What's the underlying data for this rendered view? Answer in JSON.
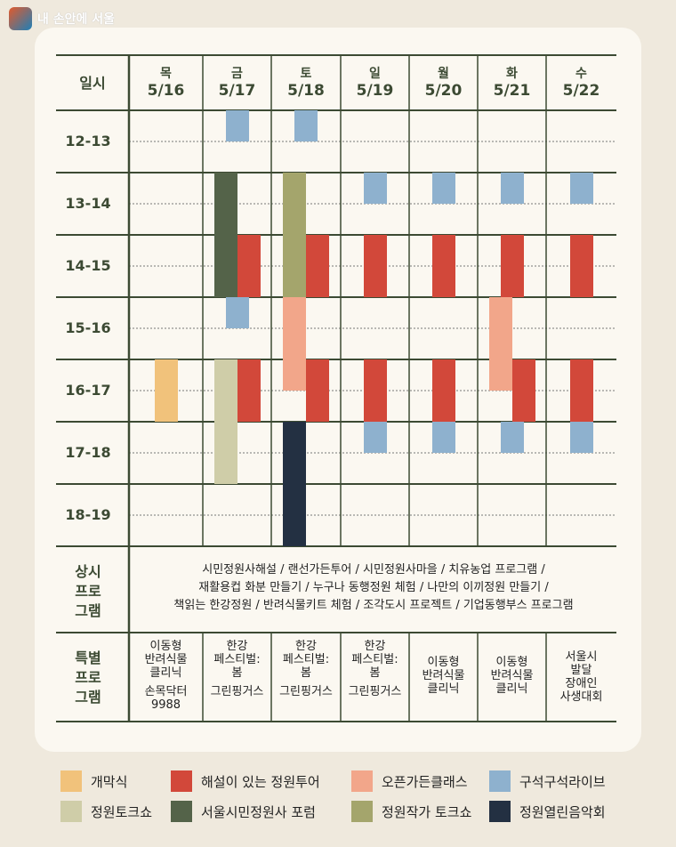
{
  "logo": {
    "text": "내 손안에 서울"
  },
  "header": {
    "corner": "일시",
    "days": [
      {
        "dow": "목",
        "date": "5/16"
      },
      {
        "dow": "금",
        "date": "5/17"
      },
      {
        "dow": "토",
        "date": "5/18"
      },
      {
        "dow": "일",
        "date": "5/19"
      },
      {
        "dow": "월",
        "date": "5/20"
      },
      {
        "dow": "화",
        "date": "5/21"
      },
      {
        "dow": "수",
        "date": "5/22"
      }
    ]
  },
  "time_slots": [
    "12-13",
    "13-14",
    "14-15",
    "15-16",
    "16-17",
    "17-18",
    "18-19"
  ],
  "programs": {
    "opening": {
      "label": "개막식",
      "color": "#f1c27b"
    },
    "guided_tour": {
      "label": "해설이 있는 정원투어",
      "color": "#d2483a"
    },
    "open_garden_class": {
      "label": "오픈가든클래스",
      "color": "#f2a68a"
    },
    "corner_live": {
      "label": "구석구석라이브",
      "color": "#8eb1ce"
    },
    "garden_talk": {
      "label": "정원토크쇼",
      "color": "#cfcda8"
    },
    "citizen_forum": {
      "label": "서울시민정원사 포럼",
      "color": "#546349"
    },
    "artist_talk": {
      "label": "정원작가 토크쇼",
      "color": "#a4a56c"
    },
    "concert": {
      "label": "정원열린음악회",
      "color": "#233042"
    }
  },
  "legend_order": [
    "opening",
    "guided_tour",
    "open_garden_class",
    "corner_live",
    "garden_talk",
    "citizen_forum",
    "artist_talk",
    "concert"
  ],
  "schedule": [
    {
      "day": 0,
      "program": "opening",
      "start": 16.0,
      "end": 17.0,
      "slot": "center"
    },
    {
      "day": 1,
      "program": "corner_live",
      "start": 12.0,
      "end": 12.5,
      "slot": "center"
    },
    {
      "day": 1,
      "program": "citizen_forum",
      "start": 13.0,
      "end": 15.0,
      "slot": "left"
    },
    {
      "day": 1,
      "program": "guided_tour",
      "start": 14.0,
      "end": 15.0,
      "slot": "right"
    },
    {
      "day": 1,
      "program": "corner_live",
      "start": 15.0,
      "end": 15.5,
      "slot": "center"
    },
    {
      "day": 1,
      "program": "garden_talk",
      "start": 16.0,
      "end": 18.0,
      "slot": "left"
    },
    {
      "day": 1,
      "program": "guided_tour",
      "start": 16.0,
      "end": 17.0,
      "slot": "right"
    },
    {
      "day": 2,
      "program": "corner_live",
      "start": 12.0,
      "end": 12.5,
      "slot": "center"
    },
    {
      "day": 2,
      "program": "artist_talk",
      "start": 13.0,
      "end": 15.0,
      "slot": "left"
    },
    {
      "day": 2,
      "program": "guided_tour",
      "start": 14.0,
      "end": 15.0,
      "slot": "right"
    },
    {
      "day": 2,
      "program": "open_garden_class",
      "start": 15.0,
      "end": 16.5,
      "slot": "left"
    },
    {
      "day": 2,
      "program": "guided_tour",
      "start": 16.0,
      "end": 17.0,
      "slot": "right"
    },
    {
      "day": 2,
      "program": "concert",
      "start": 17.0,
      "end": 19.0,
      "slot": "left"
    },
    {
      "day": 3,
      "program": "corner_live",
      "start": 13.0,
      "end": 13.5,
      "slot": "center"
    },
    {
      "day": 3,
      "program": "guided_tour",
      "start": 14.0,
      "end": 15.0,
      "slot": "center"
    },
    {
      "day": 3,
      "program": "guided_tour",
      "start": 16.0,
      "end": 17.0,
      "slot": "center"
    },
    {
      "day": 3,
      "program": "corner_live",
      "start": 17.0,
      "end": 17.5,
      "slot": "center"
    },
    {
      "day": 4,
      "program": "corner_live",
      "start": 13.0,
      "end": 13.5,
      "slot": "center"
    },
    {
      "day": 4,
      "program": "guided_tour",
      "start": 14.0,
      "end": 15.0,
      "slot": "center"
    },
    {
      "day": 4,
      "program": "guided_tour",
      "start": 16.0,
      "end": 17.0,
      "slot": "center"
    },
    {
      "day": 4,
      "program": "corner_live",
      "start": 17.0,
      "end": 17.5,
      "slot": "center"
    },
    {
      "day": 5,
      "program": "corner_live",
      "start": 13.0,
      "end": 13.5,
      "slot": "center"
    },
    {
      "day": 5,
      "program": "guided_tour",
      "start": 14.0,
      "end": 15.0,
      "slot": "center"
    },
    {
      "day": 5,
      "program": "open_garden_class",
      "start": 15.0,
      "end": 16.5,
      "slot": "left"
    },
    {
      "day": 5,
      "program": "guided_tour",
      "start": 16.0,
      "end": 17.0,
      "slot": "right"
    },
    {
      "day": 5,
      "program": "corner_live",
      "start": 17.0,
      "end": 17.5,
      "slot": "center"
    },
    {
      "day": 6,
      "program": "corner_live",
      "start": 13.0,
      "end": 13.5,
      "slot": "center"
    },
    {
      "day": 6,
      "program": "guided_tour",
      "start": 14.0,
      "end": 15.0,
      "slot": "center"
    },
    {
      "day": 6,
      "program": "guided_tour",
      "start": 16.0,
      "end": 17.0,
      "slot": "center"
    },
    {
      "day": 6,
      "program": "corner_live",
      "start": 17.0,
      "end": 17.5,
      "slot": "center"
    }
  ],
  "regular_program": {
    "label": [
      "상시",
      "프로",
      "그램"
    ],
    "lines": [
      "시민정원사해설 / 랜선가든투어 / 시민정원사마을 / 치유농업 프로그램 /",
      "재활용컵 화분 만들기 / 누구나 동행정원 체험 / 나만의 이끼정원 만들기 /",
      "책읽는 한강정원 / 반려식물키트 체험 / 조각도시 프로젝트 / 기업동행부스 프로그램"
    ]
  },
  "special_program": {
    "label": [
      "특별",
      "프로",
      "그램"
    ],
    "cells": [
      {
        "main": [
          "이동형",
          "반려식물",
          "클리닉"
        ],
        "sub": [
          "손목닥터",
          "9988"
        ]
      },
      {
        "main": [
          "한강",
          "페스티벌:",
          "봄"
        ],
        "sub": [
          "그린핑거스"
        ]
      },
      {
        "main": [
          "한강",
          "페스티벌:",
          "봄"
        ],
        "sub": [
          "그린핑거스"
        ]
      },
      {
        "main": [
          "한강",
          "페스티벌:",
          "봄"
        ],
        "sub": [
          "그린핑거스"
        ]
      },
      {
        "main": [
          "이동형",
          "반려식물",
          "클리닉"
        ],
        "sub": []
      },
      {
        "main": [
          "이동형",
          "반려식물",
          "클리닉"
        ],
        "sub": []
      },
      {
        "main": [
          "서울시",
          "발달",
          "장애인",
          "사생대회"
        ],
        "sub": []
      }
    ]
  },
  "colors": {
    "background": "#efe9dd",
    "card": "#fbf8f1",
    "grid_line": "#3c4a33",
    "header_text": "#3c4a33"
  }
}
